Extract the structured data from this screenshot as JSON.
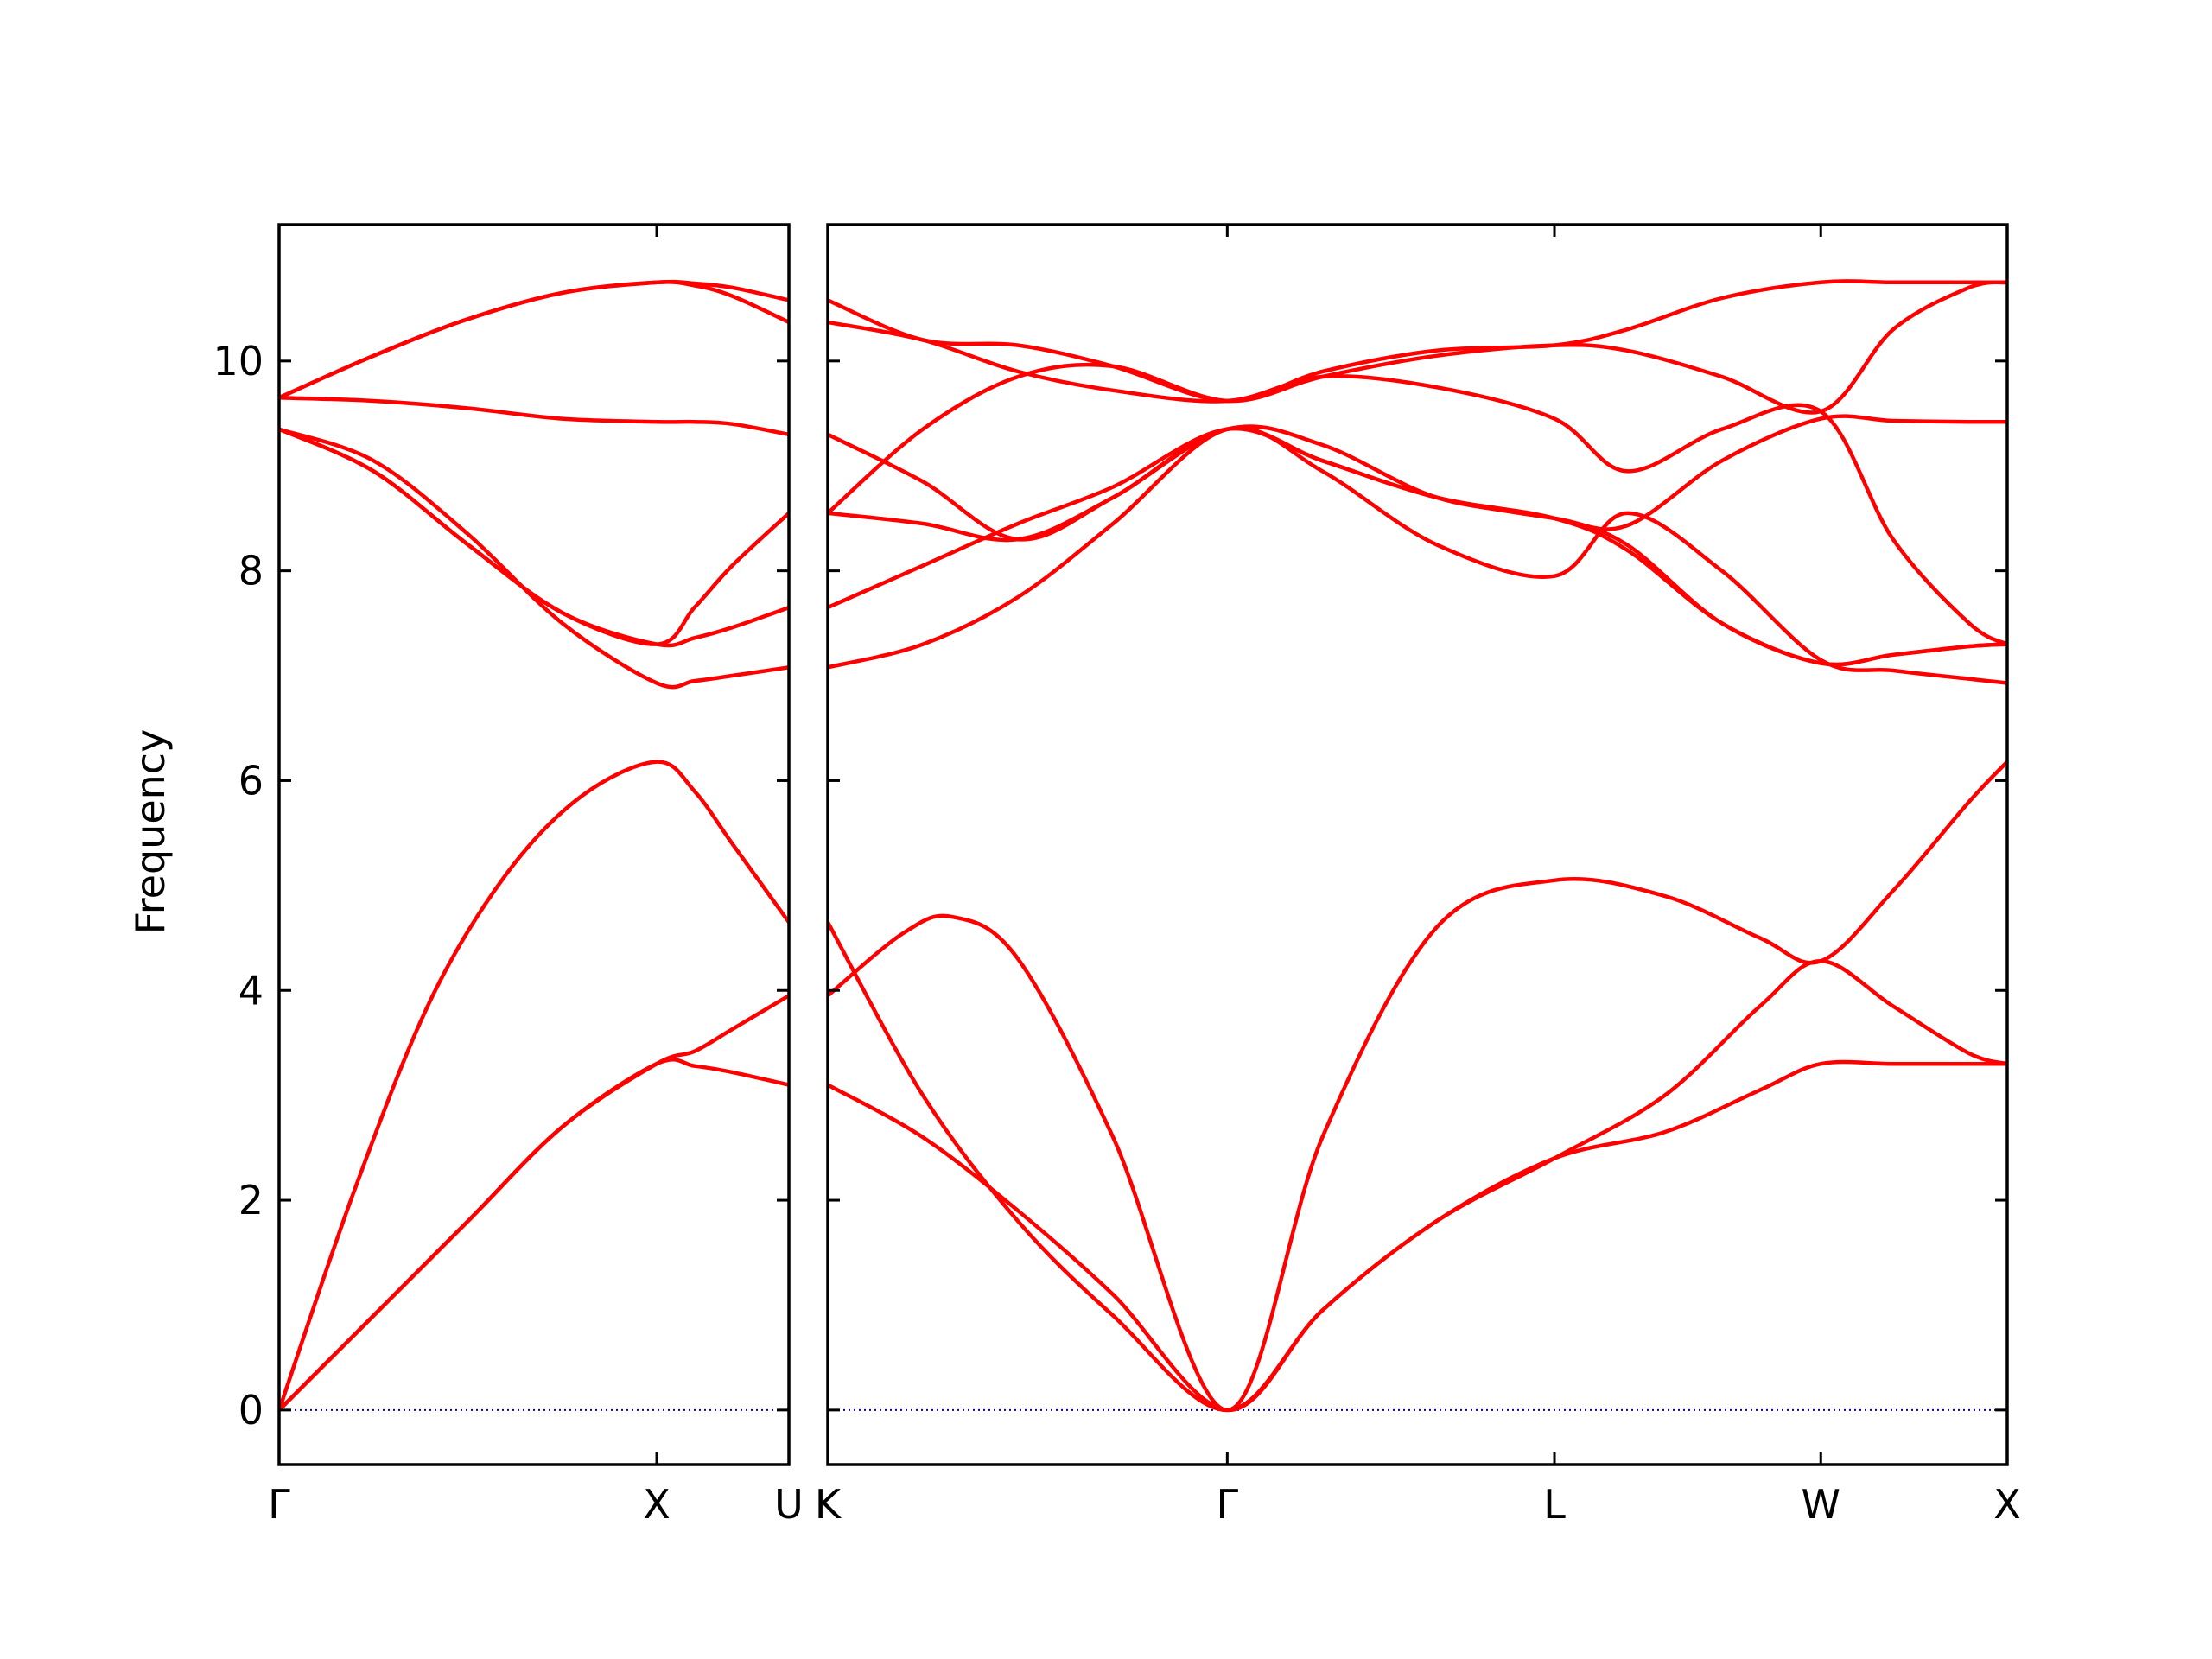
{
  "chart_data": {
    "type": "line",
    "ylabel": "Frequency",
    "ylim": [
      -0.52,
      11.3
    ],
    "yticks": [
      0,
      2,
      4,
      6,
      8,
      10
    ],
    "band_color": "#ff0000",
    "zero_line_color": "#0000cc",
    "panels": [
      {
        "xlim": [
          0,
          1.35
        ],
        "xticks": [
          {
            "pos": 0,
            "label": "Γ"
          },
          {
            "pos": 1.0,
            "label": "X"
          },
          {
            "pos": 1.35,
            "label": "U"
          }
        ],
        "bands": [
          {
            "x": [
              0,
              0.25,
              0.5,
              0.75,
              1.0,
              1.1,
              1.2,
              1.35
            ],
            "y": [
              0,
              0.9,
              1.8,
              2.7,
              3.3,
              3.28,
              3.22,
              3.1
            ]
          },
          {
            "x": [
              0,
              0.25,
              0.5,
              0.75,
              1.0,
              1.1,
              1.2,
              1.35
            ],
            "y": [
              0,
              0.9,
              1.8,
              2.7,
              3.3,
              3.42,
              3.63,
              3.95
            ]
          },
          {
            "x": [
              0,
              0.2,
              0.4,
              0.6,
              0.8,
              1.0,
              1.1,
              1.2,
              1.35
            ],
            "y": [
              0,
              2.1,
              3.9,
              5.1,
              5.85,
              6.18,
              5.9,
              5.4,
              4.65
            ]
          },
          {
            "x": [
              0,
              0.25,
              0.5,
              0.75,
              1.0,
              1.1,
              1.2,
              1.35
            ],
            "y": [
              9.35,
              9.05,
              8.35,
              7.5,
              6.93,
              6.95,
              7.0,
              7.08
            ]
          },
          {
            "x": [
              0,
              0.25,
              0.5,
              0.75,
              1.0,
              1.1,
              1.2,
              1.35
            ],
            "y": [
              9.35,
              8.95,
              8.25,
              7.6,
              7.3,
              7.36,
              7.46,
              7.65
            ]
          },
          {
            "x": [
              0,
              0.25,
              0.5,
              0.75,
              1.0,
              1.1,
              1.2,
              1.35
            ],
            "y": [
              9.35,
              8.95,
              8.25,
              7.6,
              7.3,
              7.65,
              8.05,
              8.55
            ]
          },
          {
            "x": [
              0,
              0.25,
              0.5,
              0.75,
              1.0,
              1.1,
              1.2,
              1.35
            ],
            "y": [
              9.65,
              9.62,
              9.55,
              9.45,
              9.42,
              9.42,
              9.4,
              9.3
            ]
          },
          {
            "x": [
              0,
              0.25,
              0.5,
              0.75,
              1.0,
              1.1,
              1.2,
              1.35
            ],
            "y": [
              9.65,
              10.05,
              10.4,
              10.65,
              10.75,
              10.72,
              10.62,
              10.37
            ]
          },
          {
            "x": [
              0,
              0.25,
              0.5,
              0.75,
              1.0,
              1.1,
              1.2,
              1.35
            ],
            "y": [
              9.65,
              10.05,
              10.4,
              10.65,
              10.75,
              10.74,
              10.7,
              10.58
            ]
          }
        ]
      },
      {
        "xlim": [
          0,
          3.1
        ],
        "xticks": [
          {
            "pos": 0,
            "label": "K"
          },
          {
            "pos": 1.05,
            "label": "Γ"
          },
          {
            "pos": 1.91,
            "label": "L"
          },
          {
            "pos": 2.61,
            "label": "W"
          },
          {
            "pos": 3.1,
            "label": "X"
          }
        ],
        "bands": [
          {
            "x": [
              0,
              0.25,
              0.5,
              0.75,
              1.05,
              1.3,
              1.6,
              1.91,
              2.2,
              2.45,
              2.61,
              2.8,
              3.0,
              3.1
            ],
            "y": [
              3.1,
              2.6,
              1.9,
              1.1,
              0,
              0.95,
              1.8,
              2.4,
              2.65,
              3.05,
              3.3,
              3.3,
              3.3,
              3.3
            ]
          },
          {
            "x": [
              0,
              0.25,
              0.5,
              0.75,
              1.05,
              1.3,
              1.6,
              1.91,
              2.2,
              2.45,
              2.61,
              2.8,
              3.0,
              3.1
            ],
            "y": [
              4.65,
              3.0,
              1.8,
              0.9,
              0,
              0.95,
              1.8,
              2.4,
              3.0,
              3.85,
              4.28,
              3.85,
              3.4,
              3.3
            ]
          },
          {
            "x": [
              0,
              0.2,
              0.33,
              0.5,
              0.75,
              1.05,
              1.3,
              1.6,
              1.91,
              2.2,
              2.45,
              2.61,
              2.8,
              3.0,
              3.1
            ],
            "y": [
              3.95,
              4.55,
              4.7,
              4.3,
              2.6,
              0,
              2.6,
              4.6,
              5.05,
              4.9,
              4.5,
              4.28,
              4.95,
              5.8,
              6.18
            ]
          },
          {
            "x": [
              0,
              0.25,
              0.5,
              0.75,
              1.05,
              1.3,
              1.6,
              1.91,
              2.1,
              2.35,
              2.61,
              2.8,
              3.0,
              3.1
            ],
            "y": [
              7.08,
              7.3,
              7.75,
              8.45,
              9.35,
              8.95,
              8.25,
              7.95,
              8.55,
              8.0,
              7.15,
              7.05,
              6.97,
              6.93
            ]
          },
          {
            "x": [
              0,
              0.25,
              0.5,
              0.75,
              1.05,
              1.3,
              1.6,
              1.91,
              2.1,
              2.35,
              2.61,
              2.8,
              3.0,
              3.1
            ],
            "y": [
              7.65,
              8.05,
              8.45,
              8.8,
              9.35,
              9.05,
              8.7,
              8.5,
              8.2,
              7.5,
              7.12,
              7.2,
              7.28,
              7.3
            ]
          },
          {
            "x": [
              0,
              0.25,
              0.5,
              0.75,
              1.05,
              1.3,
              1.6,
              1.91,
              2.1,
              2.35,
              2.61,
              2.8,
              3.0,
              3.1
            ],
            "y": [
              8.55,
              8.45,
              8.3,
              8.7,
              9.35,
              9.2,
              8.7,
              8.5,
              8.25,
              7.5,
              7.12,
              7.2,
              7.28,
              7.3
            ]
          },
          {
            "x": [
              0,
              0.25,
              0.5,
              0.75,
              1.05,
              1.3,
              1.6,
              1.91,
              2.1,
              2.35,
              2.61,
              2.8,
              3.0,
              3.1
            ],
            "y": [
              9.3,
              8.85,
              8.3,
              8.7,
              9.35,
              9.05,
              8.7,
              8.5,
              8.43,
              9.05,
              9.45,
              9.43,
              9.42,
              9.42
            ]
          },
          {
            "x": [
              0,
              0.25,
              0.5,
              0.75,
              1.05,
              1.3,
              1.6,
              1.91,
              2.1,
              2.35,
              2.61,
              2.8,
              3.0,
              3.1
            ],
            "y": [
              10.37,
              10.2,
              9.9,
              9.72,
              9.62,
              9.85,
              9.75,
              9.45,
              8.95,
              9.35,
              9.52,
              8.3,
              7.5,
              7.3
            ]
          },
          {
            "x": [
              0,
              0.25,
              0.5,
              0.75,
              1.05,
              1.3,
              1.6,
              1.91,
              2.1,
              2.35,
              2.61,
              2.8,
              3.0,
              3.1
            ],
            "y": [
              8.55,
              9.35,
              9.85,
              9.95,
              9.62,
              9.85,
              10.05,
              10.15,
              10.1,
              9.85,
              9.52,
              10.3,
              10.7,
              10.75
            ]
          },
          {
            "x": [
              0,
              0.25,
              0.5,
              0.75,
              1.05,
              1.3,
              1.6,
              1.91,
              2.1,
              2.35,
              2.61,
              2.8,
              3.0,
              3.1
            ],
            "y": [
              10.58,
              10.2,
              10.15,
              9.95,
              9.62,
              9.9,
              10.1,
              10.15,
              10.3,
              10.6,
              10.75,
              10.75,
              10.75,
              10.75
            ]
          }
        ]
      }
    ]
  }
}
